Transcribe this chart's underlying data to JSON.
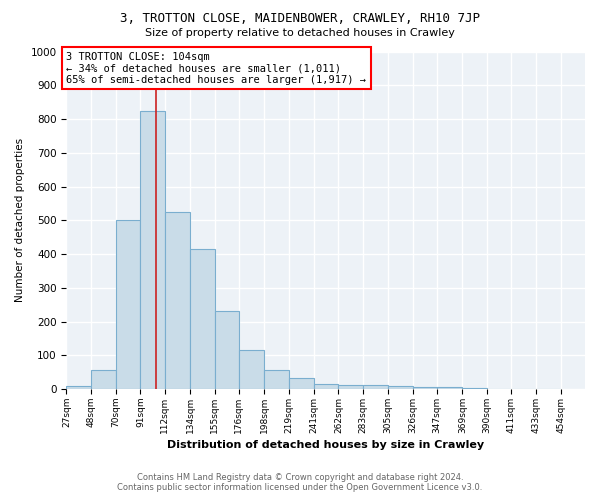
{
  "title": "3, TROTTON CLOSE, MAIDENBOWER, CRAWLEY, RH10 7JP",
  "subtitle": "Size of property relative to detached houses in Crawley",
  "xlabel": "Distribution of detached houses by size in Crawley",
  "ylabel": "Number of detached properties",
  "bins": [
    27,
    48,
    70,
    91,
    112,
    134,
    155,
    176,
    198,
    219,
    241,
    262,
    283,
    305,
    326,
    347,
    369,
    390,
    411,
    433,
    454
  ],
  "counts": [
    8,
    57,
    500,
    825,
    525,
    415,
    230,
    115,
    57,
    33,
    15,
    12,
    12,
    8,
    5,
    7,
    4,
    0,
    0,
    0
  ],
  "bar_facecolor": "#c9dce8",
  "bar_edgecolor": "#7aaecf",
  "red_line_x": 104,
  "annotation_text": "3 TROTTON CLOSE: 104sqm\n← 34% of detached houses are smaller (1,011)\n65% of semi-detached houses are larger (1,917) →",
  "vline_color": "#cc2222",
  "ylim": [
    0,
    1000
  ],
  "yticks": [
    0,
    100,
    200,
    300,
    400,
    500,
    600,
    700,
    800,
    900,
    1000
  ],
  "bg_color": "#edf2f7",
  "grid_color": "white",
  "footer_line1": "Contains HM Land Registry data © Crown copyright and database right 2024.",
  "footer_line2": "Contains public sector information licensed under the Open Government Licence v3.0."
}
